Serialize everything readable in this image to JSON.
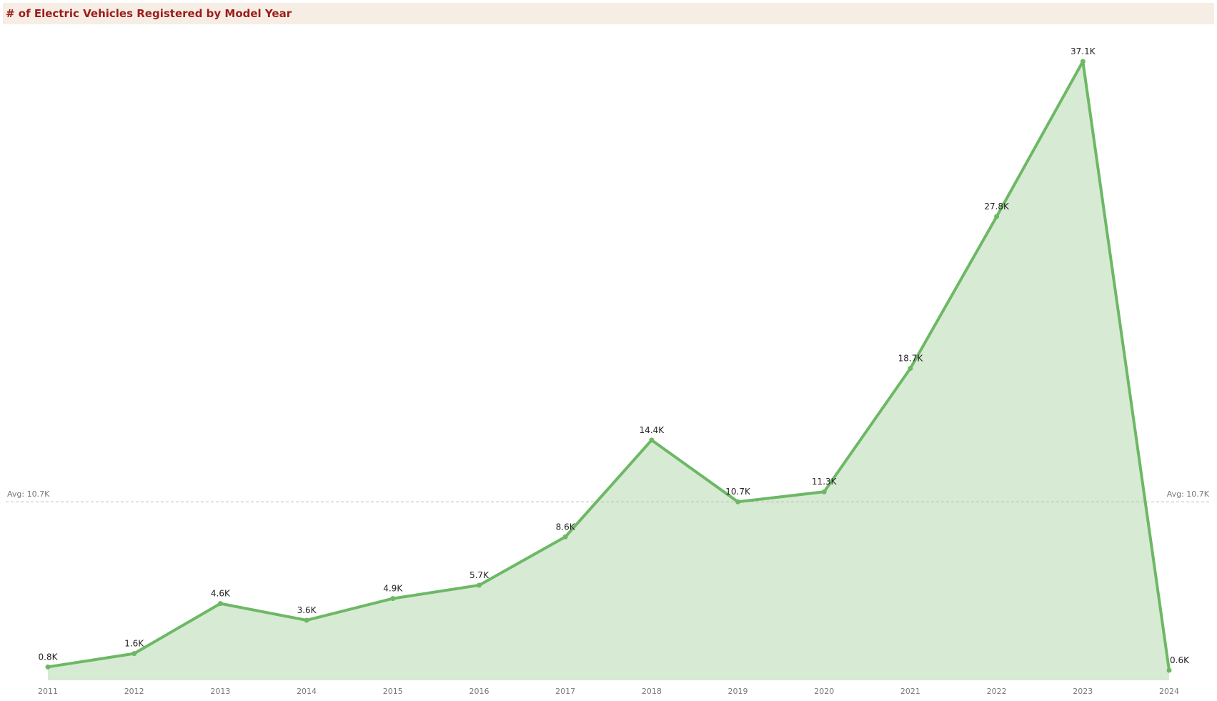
{
  "title": "# of Electric Vehicles Registered by Model Year",
  "colors": {
    "line": "#6db865",
    "area": "#d7ead3",
    "title_bg": "#f6eee4",
    "title_text": "#9b1c1c",
    "avg_line": "#bbbbbb"
  },
  "chart_data": {
    "type": "area",
    "title": "# of Electric Vehicles Registered by Model Year",
    "xlabel": "",
    "ylabel": "",
    "categories": [
      "2011",
      "2012",
      "2013",
      "2014",
      "2015",
      "2016",
      "2017",
      "2018",
      "2019",
      "2020",
      "2021",
      "2022",
      "2023",
      "2024"
    ],
    "values": [
      800,
      1600,
      4600,
      3600,
      4900,
      5700,
      8600,
      14400,
      10700,
      11300,
      18700,
      27800,
      37100,
      600
    ],
    "data_labels": [
      "0.8K",
      "1.6K",
      "4.6K",
      "3.6K",
      "4.9K",
      "5.7K",
      "8.6K",
      "14.4K",
      "10.7K",
      "11.3K",
      "18.7K",
      "27.8K",
      "37.1K",
      "0.6K"
    ],
    "ylim": [
      0,
      37100
    ],
    "grid": false,
    "legend": "none",
    "reference_line": {
      "value": 10700,
      "label_left": "Avg: 10.7K",
      "label_right": "Avg: 10.7K"
    }
  }
}
